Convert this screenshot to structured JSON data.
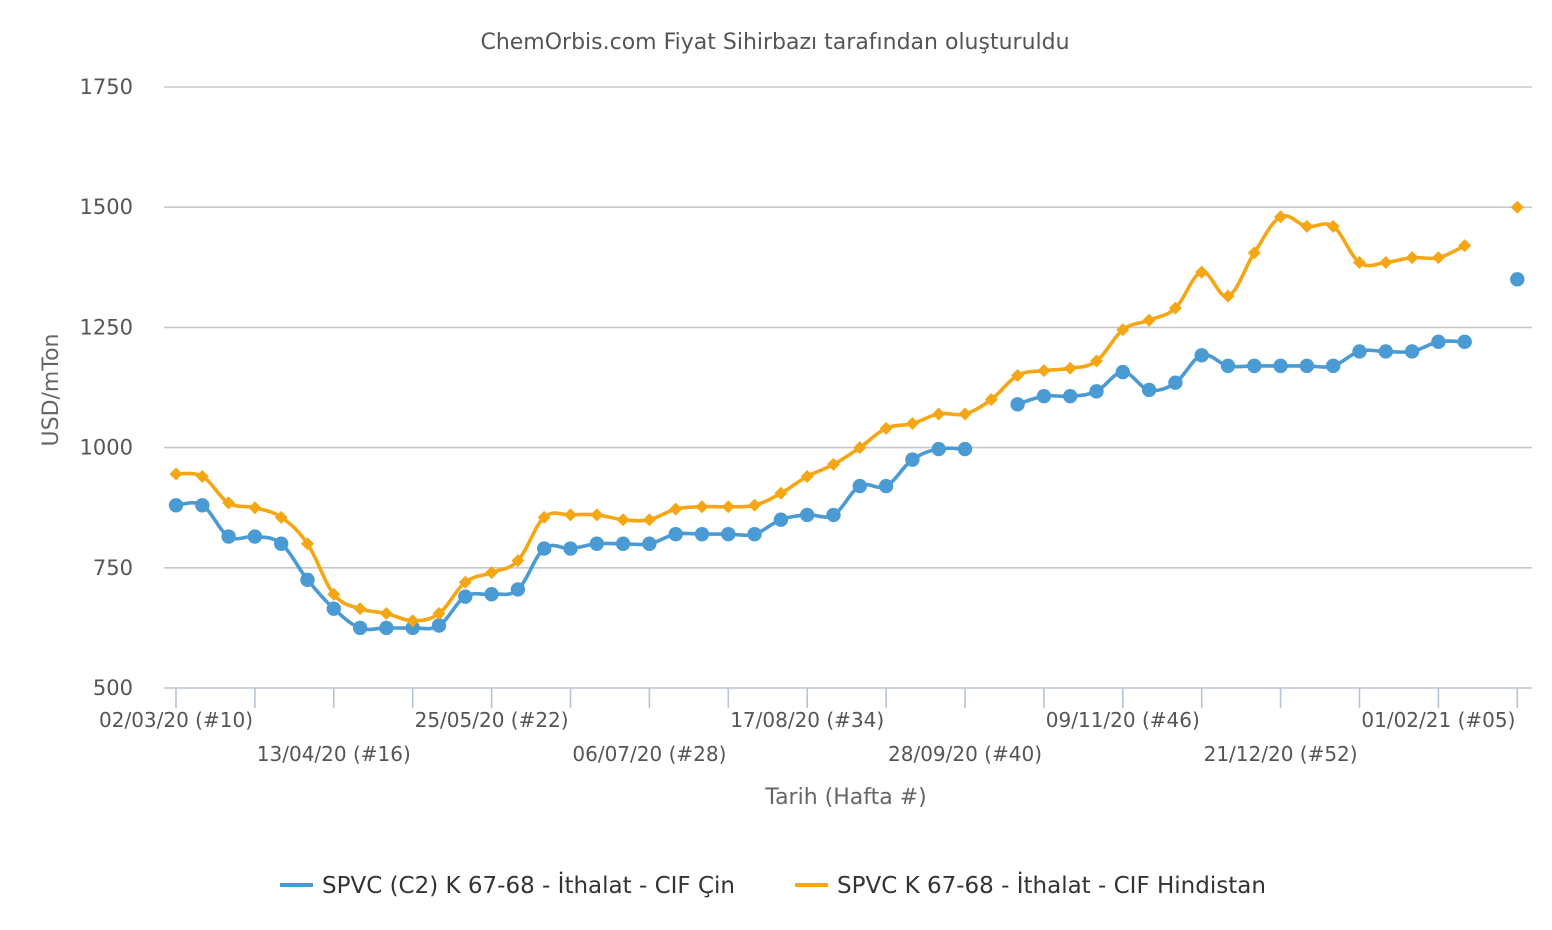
{
  "chart_data": {
    "type": "line",
    "title": "ChemOrbis.com Fiyat Sihirbazı tarafından oluşturuldu",
    "xlabel": "Tarih (Hafta #)",
    "ylabel": "USD/mTon",
    "ylim": [
      500,
      1750
    ],
    "yticks": [
      500,
      750,
      1000,
      1250,
      1500,
      1750
    ],
    "grid": true,
    "legend": "bottom",
    "x_tick_labels": [
      {
        "label": "02/03/20 (#10)",
        "index": 0
      },
      {
        "label": "13/04/20 (#16)",
        "index": 6
      },
      {
        "label": "25/05/20 (#22)",
        "index": 12
      },
      {
        "label": "06/07/20 (#28)",
        "index": 18
      },
      {
        "label": "17/08/20 (#34)",
        "index": 24
      },
      {
        "label": "28/09/20 (#40)",
        "index": 30
      },
      {
        "label": "09/11/20 (#46)",
        "index": 36
      },
      {
        "label": "21/12/20 (#52)",
        "index": 42
      },
      {
        "label": "01/02/21 (#05)",
        "index": 48
      }
    ],
    "n_weeks": 52,
    "series": [
      {
        "name": "SPVC (C2) K 67-68 - İthalat - CIF Çin",
        "color": "#4a9ad4",
        "marker": "circle",
        "values": [
          880,
          880,
          815,
          815,
          800,
          725,
          665,
          625,
          625,
          625,
          630,
          690,
          695,
          705,
          790,
          790,
          800,
          800,
          800,
          820,
          820,
          820,
          820,
          850,
          860,
          860,
          920,
          920,
          975,
          997,
          997,
          null,
          1090,
          1107,
          1107,
          1117,
          1157,
          1120,
          1135,
          1192,
          1170,
          1170,
          1170,
          1170,
          1170,
          1200,
          1200,
          1200,
          1220,
          1220,
          null,
          1350
        ]
      },
      {
        "name": "SPVC K 67-68 - İthalat - CIF Hindistan",
        "color": "#f5a614",
        "marker": "diamond",
        "values": [
          945,
          940,
          885,
          875,
          855,
          800,
          695,
          665,
          655,
          640,
          655,
          720,
          740,
          765,
          855,
          860,
          860,
          850,
          850,
          872,
          877,
          877,
          880,
          905,
          940,
          965,
          1000,
          1040,
          1050,
          1070,
          1070,
          1100,
          1150,
          1160,
          1165,
          1180,
          1245,
          1265,
          1290,
          1365,
          1315,
          1405,
          1480,
          1460,
          1460,
          1385,
          1385,
          1395,
          1395,
          1420,
          null,
          1500
        ]
      }
    ]
  }
}
